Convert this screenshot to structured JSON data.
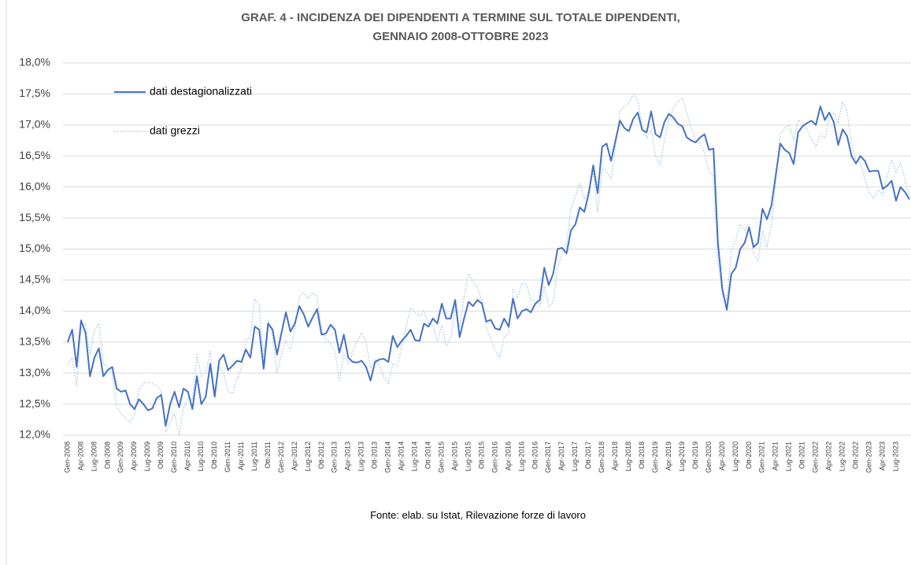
{
  "chart_data": {
    "type": "line",
    "title": [
      "GRAF. 4 - INCIDENZA DEI DIPENDENTI A TERMINE SUL TOTALE DIPENDENTI,",
      "GENNAIO 2008-OTTOBRE 2023"
    ],
    "source": "Fonte: elab. su Istat, Rilevazione forze di lavoro",
    "categories": [
      "Gen-2008",
      null,
      null,
      "Apr-2008",
      null,
      null,
      "Lug-2008",
      null,
      null,
      "Ott-2008",
      null,
      null,
      "Gen-2009",
      null,
      null,
      "Apr-2009",
      null,
      null,
      "Lug-2009",
      null,
      null,
      "Ott-2009",
      null,
      null,
      "Gen-2010",
      null,
      null,
      "Apr-2010",
      null,
      null,
      "Lug-2010",
      null,
      null,
      "Ott-2010",
      null,
      null,
      "Gen-2011",
      null,
      null,
      "Apr-2011",
      null,
      null,
      "Lug-2011",
      null,
      null,
      "Ott-2011",
      null,
      null,
      "Gen-2012",
      null,
      null,
      "Apr-2012",
      null,
      null,
      "Lug-2012",
      null,
      null,
      "Ott-2012",
      null,
      null,
      "Gen-2013",
      null,
      null,
      "Apr-2013",
      null,
      null,
      "Lug-2013",
      null,
      null,
      "Ott-2013",
      null,
      null,
      "Gen-2014",
      null,
      null,
      "Apr-2014",
      null,
      null,
      "Lug-2014",
      null,
      null,
      "Ott-2014",
      null,
      null,
      "Gen-2015",
      null,
      null,
      "Apr-2015",
      null,
      null,
      "Lug-2015",
      null,
      null,
      "Ott-2015",
      null,
      null,
      "Gen-2016",
      null,
      null,
      "Apr-2016",
      null,
      null,
      "Lug-2016",
      null,
      null,
      "Ott-2016",
      null,
      null,
      "Gen-2017",
      null,
      null,
      "Apr-2017",
      null,
      null,
      "Lug-2017",
      null,
      null,
      "Ott-2017",
      null,
      null,
      "Gen-2018",
      null,
      null,
      "Apr-2018",
      null,
      null,
      "Lug-2018",
      null,
      null,
      "Ott-2018",
      null,
      null,
      "Gen-2019",
      null,
      null,
      "Apr-2019",
      null,
      null,
      "Lug-2019",
      null,
      null,
      "Ott-2019",
      null,
      null,
      "Gen-2020",
      null,
      null,
      "Apr-2020",
      null,
      null,
      "Lug-2020",
      null,
      null,
      "Ott-2020",
      null,
      null,
      "Gen-2021",
      null,
      null,
      "Apr-2021",
      null,
      null,
      "Lug-2021",
      null,
      null,
      "Ott-2021",
      null,
      null,
      "Gen-2022",
      null,
      null,
      "Apr-2022",
      null,
      null,
      "Lug-2022",
      null,
      null,
      "Ott-2022",
      null,
      null,
      "Gen-2023",
      null,
      null,
      "Apr-2023",
      null,
      null,
      "Lug-2023",
      null,
      null,
      null
    ],
    "series": [
      {
        "name": "dati destagionalizzati",
        "color": "#4472c4",
        "dash": "solid",
        "values": [
          13.5,
          13.7,
          13.1,
          13.85,
          13.65,
          12.95,
          13.25,
          13.4,
          12.95,
          13.05,
          13.1,
          12.75,
          12.7,
          12.72,
          12.5,
          12.42,
          12.58,
          12.5,
          12.4,
          12.43,
          12.6,
          12.65,
          12.15,
          12.5,
          12.7,
          12.45,
          12.75,
          12.7,
          12.42,
          12.95,
          12.5,
          12.62,
          13.15,
          12.62,
          13.2,
          13.3,
          13.05,
          13.12,
          13.2,
          13.18,
          13.38,
          13.25,
          13.75,
          13.7,
          13.07,
          13.8,
          13.7,
          13.3,
          13.65,
          13.98,
          13.67,
          13.8,
          14.08,
          13.95,
          13.75,
          13.9,
          14.03,
          13.62,
          13.64,
          13.78,
          13.7,
          13.33,
          13.62,
          13.25,
          13.18,
          13.17,
          13.2,
          13.1,
          12.88,
          13.18,
          13.22,
          13.23,
          13.18,
          13.6,
          13.42,
          13.52,
          13.6,
          13.7,
          13.53,
          13.52,
          13.8,
          13.75,
          13.88,
          13.8,
          14.12,
          13.88,
          13.88,
          14.18,
          13.58,
          13.88,
          14.15,
          14.08,
          14.18,
          14.12,
          13.83,
          13.86,
          13.72,
          13.7,
          13.88,
          13.75,
          14.2,
          13.88,
          14.0,
          14.03,
          13.98,
          14.12,
          14.18,
          14.7,
          14.42,
          14.6,
          15.0,
          15.02,
          14.93,
          15.3,
          15.4,
          15.67,
          15.6,
          15.9,
          16.35,
          15.9,
          16.65,
          16.7,
          16.42,
          16.75,
          17.07,
          16.95,
          16.9,
          17.1,
          17.2,
          16.92,
          16.88,
          17.22,
          16.85,
          16.8,
          17.05,
          17.18,
          17.12,
          17.02,
          16.98,
          16.8,
          16.75,
          16.72,
          16.8,
          16.85,
          16.6,
          16.62,
          15.1,
          14.35,
          14.02,
          14.6,
          14.7,
          15.0,
          15.1,
          15.35,
          15.03,
          15.1,
          15.65,
          15.48,
          15.7,
          16.2,
          16.7,
          16.6,
          16.55,
          16.37,
          16.88,
          16.98,
          17.03,
          17.07,
          17.0,
          17.3,
          17.08,
          17.2,
          17.05,
          16.68,
          16.93,
          16.82,
          16.5,
          16.38,
          16.5,
          16.42,
          16.25,
          16.26,
          16.26,
          15.97,
          16.02,
          16.1,
          15.78,
          16.0,
          15.92,
          15.8
        ]
      },
      {
        "name": "dati grezzi",
        "color": "#9dc3e6",
        "dash": "dotted",
        "values": [
          13.15,
          13.25,
          12.8,
          13.75,
          13.8,
          13.3,
          13.7,
          13.8,
          13.15,
          13.1,
          13.0,
          12.45,
          12.35,
          12.27,
          12.2,
          12.32,
          12.73,
          12.85,
          12.85,
          12.83,
          12.8,
          12.7,
          12.05,
          12.2,
          12.35,
          12.0,
          12.45,
          12.6,
          12.57,
          13.3,
          12.95,
          13.02,
          13.35,
          12.67,
          13.1,
          13.0,
          12.7,
          12.67,
          12.9,
          13.08,
          13.53,
          13.6,
          14.2,
          14.1,
          13.27,
          13.85,
          13.6,
          13.0,
          13.3,
          13.53,
          13.37,
          13.7,
          14.23,
          14.3,
          14.2,
          14.3,
          14.23,
          13.67,
          13.54,
          13.48,
          13.35,
          12.88,
          13.32,
          13.15,
          13.33,
          13.52,
          13.65,
          13.5,
          13.08,
          13.23,
          13.12,
          12.93,
          12.83,
          13.15,
          13.12,
          13.42,
          13.75,
          14.05,
          13.98,
          13.92,
          14.0,
          13.8,
          13.78,
          13.5,
          13.77,
          13.43,
          13.58,
          14.08,
          13.73,
          14.23,
          14.6,
          14.48,
          14.38,
          14.17,
          13.73,
          13.56,
          13.37,
          13.25,
          13.58,
          13.65,
          14.35,
          14.23,
          14.45,
          14.43,
          14.18,
          14.17,
          14.08,
          14.4,
          14.07,
          14.15,
          14.7,
          14.92,
          15.08,
          15.65,
          15.85,
          16.07,
          15.8,
          15.95,
          16.25,
          15.6,
          16.3,
          16.25,
          16.12,
          16.65,
          17.22,
          17.3,
          17.35,
          17.5,
          17.4,
          16.97,
          16.78,
          16.92,
          16.5,
          16.35,
          16.75,
          17.08,
          17.27,
          17.37,
          17.43,
          17.2,
          16.95,
          16.77,
          16.7,
          16.55,
          16.25,
          16.17,
          14.8,
          14.25,
          14.17,
          14.95,
          15.15,
          15.4,
          15.3,
          15.4,
          14.93,
          14.8,
          15.3,
          15.03,
          15.4,
          16.1,
          16.85,
          16.95,
          17.0,
          16.77,
          17.08,
          17.03,
          16.93,
          16.77,
          16.65,
          16.85,
          16.78,
          17.1,
          17.2,
          17.03,
          17.38,
          17.22,
          16.7,
          16.43,
          16.4,
          16.12,
          15.9,
          15.81,
          15.96,
          15.87,
          16.17,
          16.45,
          16.23,
          16.4,
          16.12,
          15.85
        ]
      }
    ],
    "ylim": [
      12,
      18
    ],
    "yticks": [
      {
        "value": 12,
        "label": "12,0%"
      },
      {
        "value": 12.5,
        "label": "12,5%"
      },
      {
        "value": 13,
        "label": "13,0%"
      },
      {
        "value": 13.5,
        "label": "13,5%"
      },
      {
        "value": 14,
        "label": "14,0%"
      },
      {
        "value": 14.5,
        "label": "14,5%"
      },
      {
        "value": 15,
        "label": "15,0%"
      },
      {
        "value": 15.5,
        "label": "15,5%"
      },
      {
        "value": 16,
        "label": "16,0%"
      },
      {
        "value": 16.5,
        "label": "16,5%"
      },
      {
        "value": 17,
        "label": "17,0%"
      },
      {
        "value": 17.5,
        "label": "17,5%"
      },
      {
        "value": 18,
        "label": "18,0%"
      }
    ],
    "grid": true,
    "legend": "top-left"
  }
}
